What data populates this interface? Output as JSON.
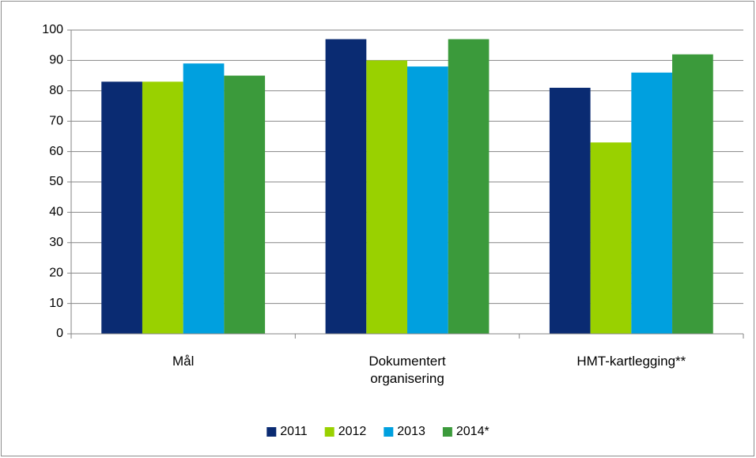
{
  "chart_data": {
    "type": "bar",
    "categories": [
      "Mål",
      "Dokumentert organisering",
      "HMT-kartlegging**"
    ],
    "series": [
      {
        "name": "2011",
        "color": "#0a2b72",
        "values": [
          83,
          97,
          81
        ]
      },
      {
        "name": "2012",
        "color": "#99d100",
        "values": [
          83,
          90,
          63
        ]
      },
      {
        "name": "2013",
        "color": "#00a0df",
        "values": [
          89,
          88,
          86
        ]
      },
      {
        "name": "2014*",
        "color": "#3b9a3b",
        "values": [
          85,
          97,
          92
        ]
      }
    ],
    "ylim": [
      0,
      100
    ],
    "yticks": [
      0,
      10,
      20,
      30,
      40,
      50,
      60,
      70,
      80,
      90,
      100
    ],
    "grid": true,
    "legend": "bottom"
  }
}
